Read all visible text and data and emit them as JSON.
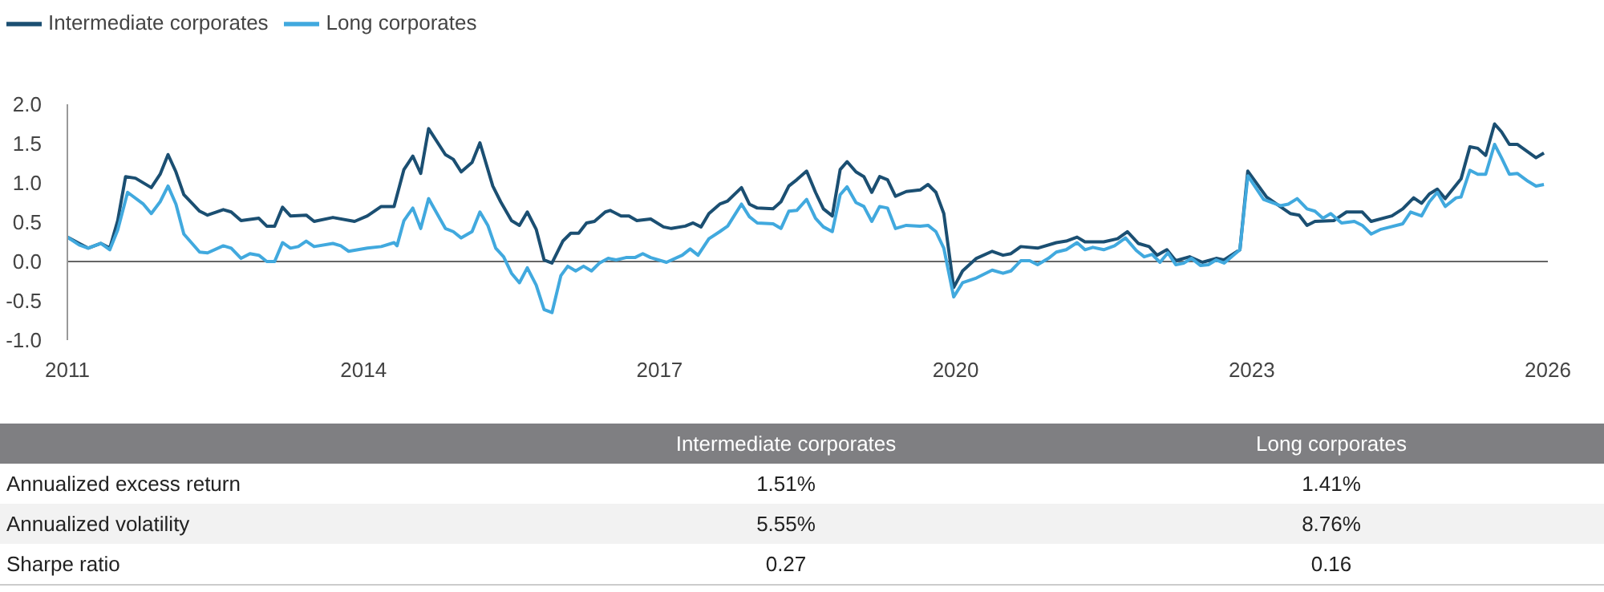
{
  "chart_data": [
    {
      "type": "line",
      "legend": "top left",
      "grid": false,
      "marker": "none",
      "line_style": "solid",
      "xlim": [
        2011,
        2026
      ],
      "xticks": [
        2011,
        2014,
        2017,
        2020,
        2023,
        2026
      ],
      "ylim": [
        -1,
        2
      ],
      "yticks": [
        {
          "value": -1,
          "label": "-1.0"
        },
        {
          "value": -0.5,
          "label": "-0.5"
        },
        {
          "value": 0,
          "label": "0.0"
        },
        {
          "value": 0.5,
          "label": "0.5"
        },
        {
          "value": 1,
          "label": "1.0"
        },
        {
          "value": 1.5,
          "label": "1.5"
        },
        {
          "value": 2,
          "label": "2.0"
        }
      ],
      "ref_lines": [
        {
          "axis": "y",
          "value": 0,
          "color": "#666666"
        }
      ],
      "series": [
        {
          "name": "Intermediate corporates",
          "color": "#1b4f72",
          "x": [
            2011.0,
            2011.12,
            2011.21,
            2011.34,
            2011.43,
            2011.51,
            2011.59,
            2011.69,
            2011.85,
            2011.94,
            2012.02,
            2012.1,
            2012.18,
            2012.34,
            2012.42,
            2012.58,
            2012.66,
            2012.76,
            2012.94,
            2013.02,
            2013.1,
            2013.18,
            2013.26,
            2013.42,
            2013.5,
            2013.69,
            2013.91,
            2014.04,
            2014.18,
            2014.31,
            2014.41,
            2014.5,
            2014.58,
            2014.66,
            2014.83,
            2014.91,
            2014.99,
            2015.1,
            2015.18,
            2015.31,
            2015.39,
            2015.5,
            2015.58,
            2015.66,
            2015.75,
            2015.83,
            2015.91,
            2016.02,
            2016.1,
            2016.18,
            2016.26,
            2016.34,
            2016.45,
            2016.5,
            2016.61,
            2016.69,
            2016.77,
            2016.91,
            2017.04,
            2017.12,
            2017.26,
            2017.34,
            2017.42,
            2017.5,
            2017.61,
            2017.69,
            2017.83,
            2017.91,
            2017.99,
            2018.15,
            2018.23,
            2018.31,
            2018.39,
            2018.49,
            2018.58,
            2018.66,
            2018.75,
            2018.83,
            2018.9,
            2018.99,
            2019.07,
            2019.15,
            2019.23,
            2019.31,
            2019.39,
            2019.5,
            2019.64,
            2019.72,
            2019.8,
            2019.88,
            2019.98,
            2020.07,
            2020.21,
            2020.37,
            2020.48,
            2020.56,
            2020.66,
            2020.83,
            2021.02,
            2021.12,
            2021.23,
            2021.31,
            2021.5,
            2021.64,
            2021.74,
            2021.85,
            2021.96,
            2022.04,
            2022.14,
            2022.23,
            2022.37,
            2022.5,
            2022.64,
            2022.72,
            2022.88,
            2022.96,
            2023.15,
            2023.39,
            2023.48,
            2023.56,
            2023.64,
            2023.83,
            2023.96,
            2024.12,
            2024.21,
            2024.42,
            2024.53,
            2024.64,
            2024.72,
            2024.8,
            2024.88,
            2024.96,
            2025.12,
            2025.21,
            2025.29,
            2025.37,
            2025.46,
            2025.53,
            2025.61,
            2025.69,
            2025.88,
            2025.96
          ],
          "values": [
            0.31,
            0.23,
            0.17,
            0.23,
            0.17,
            0.52,
            1.08,
            1.06,
            0.94,
            1.11,
            1.36,
            1.14,
            0.85,
            0.64,
            0.59,
            0.66,
            0.63,
            0.52,
            0.55,
            0.45,
            0.45,
            0.69,
            0.58,
            0.59,
            0.51,
            0.56,
            0.51,
            0.58,
            0.7,
            0.7,
            1.17,
            1.34,
            1.12,
            1.69,
            1.36,
            1.3,
            1.14,
            1.26,
            1.51,
            0.96,
            0.76,
            0.52,
            0.46,
            0.63,
            0.41,
            0.02,
            -0.02,
            0.26,
            0.36,
            0.36,
            0.49,
            0.51,
            0.63,
            0.65,
            0.58,
            0.58,
            0.52,
            0.54,
            0.44,
            0.42,
            0.45,
            0.49,
            0.44,
            0.61,
            0.73,
            0.77,
            0.94,
            0.73,
            0.68,
            0.67,
            0.76,
            0.96,
            1.04,
            1.15,
            0.88,
            0.67,
            0.58,
            1.17,
            1.27,
            1.14,
            1.08,
            0.88,
            1.08,
            1.04,
            0.83,
            0.89,
            0.91,
            0.98,
            0.88,
            0.61,
            -0.33,
            -0.12,
            0.04,
            0.13,
            0.08,
            0.1,
            0.19,
            0.17,
            0.24,
            0.26,
            0.31,
            0.25,
            0.25,
            0.29,
            0.38,
            0.23,
            0.19,
            0.08,
            0.15,
            0.01,
            0.06,
            -0.01,
            0.04,
            0.02,
            0.15,
            1.15,
            0.82,
            0.61,
            0.59,
            0.46,
            0.51,
            0.52,
            0.63,
            0.63,
            0.51,
            0.58,
            0.67,
            0.81,
            0.74,
            0.86,
            0.92,
            0.8,
            1.05,
            1.46,
            1.44,
            1.35,
            1.75,
            1.65,
            1.49,
            1.49,
            1.32,
            1.38
          ]
        },
        {
          "name": "Long corporates",
          "color": "#41a9de",
          "x": [
            2011.0,
            2011.12,
            2011.21,
            2011.34,
            2011.43,
            2011.51,
            2011.61,
            2011.77,
            2011.85,
            2011.94,
            2012.02,
            2012.1,
            2012.18,
            2012.34,
            2012.42,
            2012.58,
            2012.66,
            2012.76,
            2012.85,
            2012.94,
            2013.02,
            2013.1,
            2013.18,
            2013.26,
            2013.34,
            2013.42,
            2013.5,
            2013.69,
            2013.77,
            2013.85,
            2014.04,
            2014.18,
            2014.31,
            2014.34,
            2014.41,
            2014.5,
            2014.58,
            2014.66,
            2014.83,
            2014.91,
            2014.99,
            2015.1,
            2015.18,
            2015.26,
            2015.34,
            2015.42,
            2015.5,
            2015.58,
            2015.66,
            2015.75,
            2015.83,
            2015.91,
            2016.0,
            2016.07,
            2016.15,
            2016.23,
            2016.31,
            2016.39,
            2016.48,
            2016.56,
            2016.66,
            2016.75,
            2016.83,
            2016.91,
            2017.07,
            2017.23,
            2017.31,
            2017.39,
            2017.5,
            2017.61,
            2017.69,
            2017.83,
            2017.91,
            2017.99,
            2018.15,
            2018.23,
            2018.31,
            2018.39,
            2018.49,
            2018.58,
            2018.66,
            2018.75,
            2018.83,
            2018.9,
            2018.99,
            2019.07,
            2019.15,
            2019.23,
            2019.31,
            2019.39,
            2019.5,
            2019.64,
            2019.72,
            2019.8,
            2019.88,
            2019.98,
            2020.07,
            2020.21,
            2020.37,
            2020.48,
            2020.56,
            2020.66,
            2020.75,
            2020.83,
            2020.94,
            2021.02,
            2021.12,
            2021.23,
            2021.31,
            2021.39,
            2021.5,
            2021.61,
            2021.72,
            2021.83,
            2021.91,
            2021.99,
            2022.07,
            2022.15,
            2022.23,
            2022.31,
            2022.39,
            2022.48,
            2022.56,
            2022.64,
            2022.72,
            2022.88,
            2022.96,
            2023.12,
            2023.29,
            2023.37,
            2023.46,
            2023.56,
            2023.64,
            2023.72,
            2023.8,
            2023.91,
            2024.04,
            2024.12,
            2024.21,
            2024.31,
            2024.53,
            2024.61,
            2024.72,
            2024.8,
            2024.88,
            2024.96,
            2025.07,
            2025.12,
            2025.21,
            2025.29,
            2025.37,
            2025.46,
            2025.53,
            2025.61,
            2025.69,
            2025.8,
            2025.88,
            2025.96
          ],
          "values": [
            0.31,
            0.21,
            0.17,
            0.23,
            0.15,
            0.4,
            0.88,
            0.73,
            0.61,
            0.76,
            0.96,
            0.73,
            0.35,
            0.12,
            0.11,
            0.2,
            0.17,
            0.04,
            0.1,
            0.08,
            0,
            0,
            0.24,
            0.17,
            0.19,
            0.26,
            0.19,
            0.23,
            0.2,
            0.13,
            0.17,
            0.19,
            0.24,
            0.2,
            0.52,
            0.68,
            0.42,
            0.8,
            0.42,
            0.38,
            0.3,
            0.38,
            0.63,
            0.46,
            0.17,
            0.06,
            -0.15,
            -0.27,
            -0.08,
            -0.3,
            -0.61,
            -0.65,
            -0.18,
            -0.06,
            -0.12,
            -0.06,
            -0.12,
            -0.02,
            0.04,
            0.02,
            0.05,
            0.05,
            0.1,
            0.05,
            -0.01,
            0.08,
            0.16,
            0.08,
            0.29,
            0.38,
            0.45,
            0.73,
            0.57,
            0.49,
            0.48,
            0.42,
            0.64,
            0.65,
            0.79,
            0.55,
            0.44,
            0.38,
            0.85,
            0.95,
            0.75,
            0.7,
            0.51,
            0.7,
            0.68,
            0.42,
            0.46,
            0.45,
            0.46,
            0.38,
            0.17,
            -0.45,
            -0.27,
            -0.21,
            -0.11,
            -0.15,
            -0.12,
            0.01,
            0.01,
            -0.04,
            0.04,
            0.12,
            0.15,
            0.24,
            0.15,
            0.18,
            0.15,
            0.2,
            0.3,
            0.14,
            0.06,
            0.09,
            -0.01,
            0.11,
            -0.04,
            -0.02,
            0.04,
            -0.05,
            -0.04,
            0.02,
            -0.02,
            0.15,
            1.09,
            0.79,
            0.71,
            0.73,
            0.8,
            0.67,
            0.64,
            0.55,
            0.61,
            0.49,
            0.51,
            0.46,
            0.35,
            0.41,
            0.48,
            0.63,
            0.58,
            0.76,
            0.88,
            0.7,
            0.81,
            0.82,
            1.16,
            1.11,
            1.11,
            1.49,
            1.32,
            1.11,
            1.12,
            1.02,
            0.96,
            0.98
          ]
        }
      ]
    },
    {
      "type": "other",
      "annotations": [
        "Intermediate corporates",
        "Long  corporates",
        "Annualized excess return",
        "1.51%",
        "1.41%",
        "Annualized volatility",
        "5.55%",
        "8.76%",
        "Sharpe ratio",
        "0.27",
        "0.16"
      ]
    }
  ]
}
